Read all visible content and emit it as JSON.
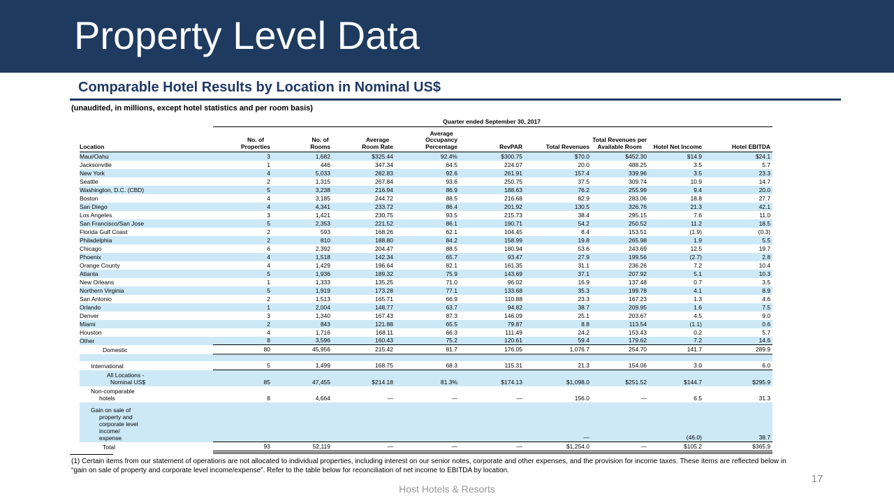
{
  "slide": {
    "title": "Property Level Data",
    "page_number": "17",
    "footer_brand": "Host Hotels & Resorts"
  },
  "section": {
    "heading": "Comparable Hotel Results by Location in Nominal US$",
    "note": "(unaudited, in millions, except hotel statistics and per room basis)"
  },
  "table": {
    "period_header": "Quarter ended September 30, 2017",
    "column_headers": {
      "location": "Location",
      "properties": [
        "No. of",
        "Properties"
      ],
      "rooms": [
        "No. of",
        "Rooms"
      ],
      "room_rate": [
        "Average",
        "Room Rate"
      ],
      "occupancy": [
        "Average",
        "Occupancy",
        "Percentage"
      ],
      "revpar": [
        "RevPAR"
      ],
      "total_revenues": [
        "Total Revenues"
      ],
      "available_room": [
        "Total Revenues per",
        "Available Room"
      ],
      "net_income": [
        "Hotel Net Income"
      ],
      "ebitda": [
        "Hotel EBITDA"
      ],
      "ebitda_sup": "(1)"
    },
    "rows": [
      {
        "location": "Maui/Oahu",
        "values": [
          "3",
          "1,682",
          "$325.44",
          "92.4%",
          "$300.75",
          "$70.0",
          "$452.30",
          "$14.9",
          "$24.1"
        ]
      },
      {
        "location": "Jacksonville",
        "values": [
          "1",
          "446",
          "347.34",
          "64.5",
          "224.07",
          "20.0",
          "488.25",
          "3.5",
          "5.7"
        ]
      },
      {
        "location": "New York",
        "values": [
          "4",
          "5,033",
          "282.83",
          "92.6",
          "261.91",
          "157.4",
          "339.96",
          "3.5",
          "23.3"
        ]
      },
      {
        "location": "Seattle",
        "values": [
          "2",
          "1,315",
          "267.84",
          "93.6",
          "250.75",
          "37.5",
          "309.74",
          "10.9",
          "14.7"
        ]
      },
      {
        "location": "Washington, D.C. (CBD)",
        "values": [
          "5",
          "3,238",
          "216.94",
          "86.9",
          "188.63",
          "76.2",
          "255.99",
          "9.4",
          "20.0"
        ]
      },
      {
        "location": "Boston",
        "values": [
          "4",
          "3,185",
          "244.72",
          "88.5",
          "216.68",
          "82.9",
          "283.06",
          "18.8",
          "27.7"
        ]
      },
      {
        "location": "San Diego",
        "values": [
          "4",
          "4,341",
          "233.72",
          "86.4",
          "201.92",
          "130.5",
          "326.76",
          "21.3",
          "42.1"
        ]
      },
      {
        "location": "Los Angeles",
        "values": [
          "3",
          "1,421",
          "230.75",
          "93.5",
          "215.73",
          "38.4",
          "295.15",
          "7.6",
          "11.0"
        ]
      },
      {
        "location": "San Francisco/San Jose",
        "values": [
          "5",
          "2,353",
          "221.52",
          "86.1",
          "190.71",
          "54.2",
          "250.52",
          "11.2",
          "18.5"
        ]
      },
      {
        "location": "Florida Gulf Coast",
        "values": [
          "2",
          "593",
          "168.26",
          "62.1",
          "104.45",
          "8.4",
          "153.51",
          "(1.9)",
          "(0.3)"
        ]
      },
      {
        "location": "Philadelphia",
        "values": [
          "2",
          "810",
          "188.80",
          "84.2",
          "158.99",
          "19.8",
          "265.98",
          "1.9",
          "5.5"
        ]
      },
      {
        "location": "Chicago",
        "values": [
          "6",
          "2,392",
          "204.47",
          "88.5",
          "180.94",
          "53.6",
          "243.69",
          "12.5",
          "19.7"
        ]
      },
      {
        "location": "Phoenix",
        "values": [
          "4",
          "1,518",
          "142.34",
          "65.7",
          "93.47",
          "27.9",
          "199.56",
          "(2.7)",
          "2.8"
        ]
      },
      {
        "location": "Orange County",
        "values": [
          "4",
          "1,429",
          "196.64",
          "82.1",
          "161.35",
          "31.1",
          "236.26",
          "7.2",
          "10.4"
        ]
      },
      {
        "location": "Atlanta",
        "values": [
          "5",
          "1,936",
          "189.32",
          "75.9",
          "143.69",
          "37.1",
          "207.92",
          "5.1",
          "10.3"
        ]
      },
      {
        "location": "New Orleans",
        "values": [
          "1",
          "1,333",
          "135.25",
          "71.0",
          "96.02",
          "16.9",
          "137.48",
          "0.7",
          "3.5"
        ]
      },
      {
        "location": "Northern Virginia",
        "values": [
          "5",
          "1,919",
          "173.28",
          "77.1",
          "133.68",
          "35.3",
          "199.78",
          "4.1",
          "8.9"
        ]
      },
      {
        "location": "San Antonio",
        "values": [
          "2",
          "1,513",
          "165.71",
          "66.9",
          "110.88",
          "23.3",
          "167.23",
          "1.3",
          "4.6"
        ]
      },
      {
        "location": "Orlando",
        "values": [
          "1",
          "2,004",
          "148.77",
          "63.7",
          "94.82",
          "38.7",
          "209.95",
          "1.6",
          "7.5"
        ]
      },
      {
        "location": "Denver",
        "values": [
          "3",
          "1,340",
          "167.43",
          "87.3",
          "146.09",
          "25.1",
          "203.67",
          "4.5",
          "9.0"
        ]
      },
      {
        "location": "Miami",
        "values": [
          "2",
          "843",
          "121.88",
          "65.5",
          "79.87",
          "8.8",
          "113.54",
          "(1.1)",
          "0.6"
        ]
      },
      {
        "location": "Houston",
        "values": [
          "4",
          "1,716",
          "168.11",
          "66.3",
          "111.49",
          "24.2",
          "153.43",
          "0.2",
          "5.7"
        ]
      },
      {
        "location": "Other",
        "values": [
          "8",
          "3,596",
          "160.43",
          "75.2",
          "120.61",
          "59.4",
          "179.62",
          "7.2",
          "14.6"
        ]
      }
    ],
    "summary_rows": [
      {
        "id": "domestic",
        "label_lines": [
          "Domestic"
        ],
        "values": [
          "80",
          "45,956",
          "215.42",
          "81.7",
          "176.05",
          "1,076.7",
          "254.70",
          "141.7",
          "289.9"
        ]
      },
      {
        "id": "spacer",
        "label_lines": [],
        "values": [
          "",
          "",
          "",
          "",
          "",
          "",
          "",
          "",
          ""
        ]
      },
      {
        "id": "international",
        "label_lines": [
          "International"
        ],
        "values": [
          "5",
          "1,499",
          "168.75",
          "68.3",
          "115.31",
          "21.3",
          "154.06",
          "3.0",
          "6.0"
        ]
      },
      {
        "id": "all_locations",
        "label_lines": [
          "All Locations -",
          "Nominal US$"
        ],
        "values": [
          "85",
          "47,455",
          "$214.18",
          "81.3%",
          "$174.13",
          "$1,098.0",
          "$251.52",
          "$144.7",
          "$295.9"
        ]
      },
      {
        "id": "non_comparable",
        "label_lines": [
          "Non-comparable",
          "hotels"
        ],
        "values": [
          "8",
          "4,664",
          "—",
          "—",
          "—",
          "156.0",
          "—",
          "6.5",
          "31.3"
        ]
      },
      {
        "id": "gain_on_sale",
        "label_lines": [
          "Gain on sale of",
          "property and",
          "corporate level",
          "income/",
          "expense"
        ],
        "values": [
          "",
          "",
          "",
          "",
          "",
          "—",
          "",
          "(46.0)",
          "38.7"
        ]
      },
      {
        "id": "total",
        "label_lines": [
          "Total"
        ],
        "values": [
          "93",
          "52,119",
          "—",
          "—",
          "—",
          "$1,254.0",
          "—",
          "$105.2",
          "$365.9"
        ]
      }
    ]
  },
  "footnote": "(1) Certain items from our statement of operations are not allocated to individual properties, including interest on our senior notes, corporate and other expenses, and the provision for income taxes. These items are reflected below in “gain on sale of property and corporate level income/expense”. Refer to the table below for reconciliation of net income to EBITDA by location.",
  "colors": {
    "band_navy": "#1e3a5f",
    "heading_navy": "#1f3864",
    "row_stripe_blue": "#cde9f7",
    "thick_line_gray": "#7e7e7e",
    "footer_gray": "#949494"
  }
}
